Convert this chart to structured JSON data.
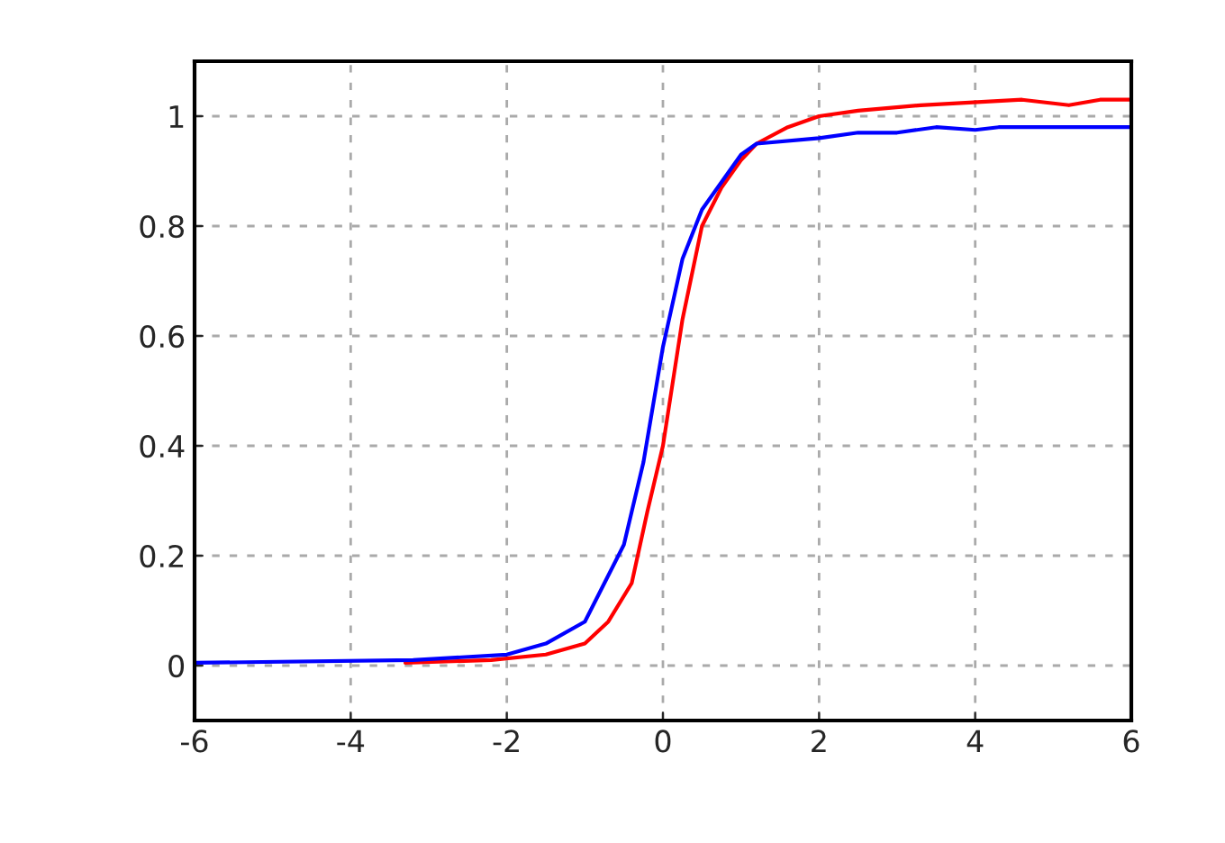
{
  "chart_data": {
    "type": "line",
    "xlim": [
      -6,
      6
    ],
    "ylim": [
      -0.1,
      1.1
    ],
    "xticks": [
      -6,
      -4,
      -2,
      0,
      2,
      4,
      6
    ],
    "yticks": [
      0,
      0.2,
      0.4,
      0.6,
      0.8,
      1
    ],
    "grid": true,
    "line_style": "solid",
    "marker": "none",
    "series": [
      {
        "color": "#ff0000",
        "x": [
          -3.3,
          -2.2,
          -1.5,
          -1,
          -0.7,
          -0.4,
          -0.2,
          0,
          0.25,
          0.5,
          0.75,
          1,
          1.2,
          1.6,
          2,
          2.5,
          3.3,
          4.6,
          5.2,
          5.6,
          6
        ],
        "values": [
          0.005,
          0.01,
          0.02,
          0.04,
          0.08,
          0.15,
          0.28,
          0.4,
          0.63,
          0.8,
          0.87,
          0.92,
          0.95,
          0.98,
          1.0,
          1.01,
          1.02,
          1.03,
          1.02,
          1.03,
          1.03
        ]
      },
      {
        "color": "#0000ff",
        "x": [
          -6,
          -3.2,
          -2,
          -1.5,
          -1,
          -0.5,
          -0.25,
          0,
          0.25,
          0.5,
          0.75,
          1,
          1.2,
          2,
          2.5,
          3,
          3.5,
          4,
          4.3,
          6
        ],
        "values": [
          0.005,
          0.01,
          0.02,
          0.04,
          0.08,
          0.22,
          0.37,
          0.58,
          0.74,
          0.83,
          0.88,
          0.93,
          0.95,
          0.96,
          0.97,
          0.97,
          0.98,
          0.975,
          0.98,
          0.98
        ]
      }
    ]
  }
}
